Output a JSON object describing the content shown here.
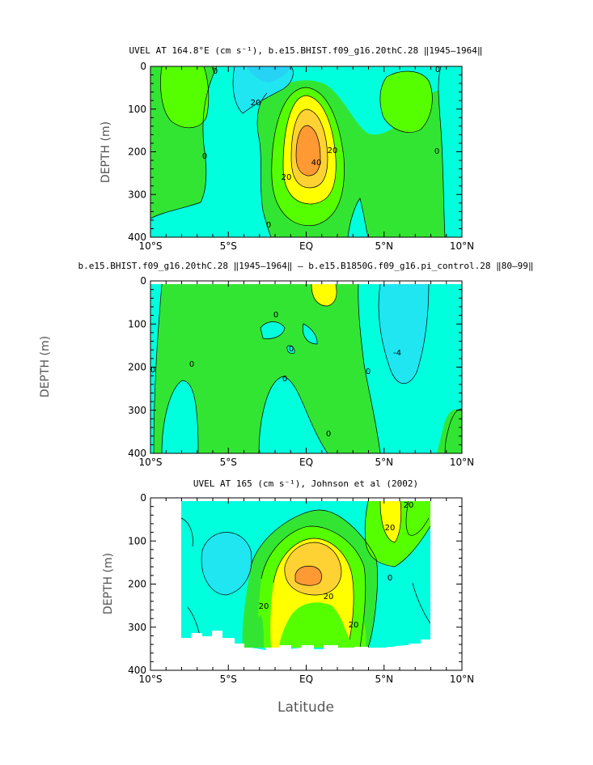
{
  "colors": {
    "c_cyan_light": "#00ffdd",
    "c_cyan": "#1fe6f0",
    "c_cyan_dark": "#26d3f5",
    "c_green_light": "#33e533",
    "c_green": "#55ff00",
    "c_yellow": "#ffff00",
    "c_gold": "#ffd233",
    "c_orange": "#ff9933",
    "missing": "#ffffff"
  },
  "xlabel": "Latitude",
  "chart_data": [
    {
      "type": "heatmap",
      "title": "UVEL AT 164.8°E (cm s⁻¹), b.e15.BHIST.f09_g16.20thC.28 ‖1945–1964‖",
      "ylabel": "DEPTH (m)",
      "xlim": [
        -10,
        10
      ],
      "ylim": [
        400,
        0
      ],
      "xticks": [
        "10°S",
        "5°S",
        "EQ",
        "5°N",
        "10°N"
      ],
      "yticks": [
        "0",
        "100",
        "200",
        "300",
        "400"
      ],
      "contour_labels": [
        "0",
        "20",
        "20",
        "40",
        "20",
        "0",
        "0",
        "0",
        "0"
      ],
      "features": [
        {
          "name": "core-maximum",
          "lat": 0,
          "depth": 190,
          "value": 60
        },
        {
          "name": "surface-westward-flow",
          "lat": -2,
          "depth": 0,
          "value": -20
        },
        {
          "name": "eastward-flow-south",
          "lat": -8,
          "depth": 100,
          "value": 10
        },
        {
          "name": "eastward-flow-north",
          "lat": 6,
          "depth": 100,
          "value": 10
        }
      ]
    },
    {
      "type": "heatmap",
      "title": "b.e15.BHIST.f09_g16.20thC.28 ‖1945–1964‖ – b.e15.B1850G.f09_g16.pi_control.28 ‖80–99‖",
      "ylabel": "DEPTH (m)",
      "xlim": [
        -10,
        10
      ],
      "ylim": [
        400,
        0
      ],
      "xticks": [
        "10°S",
        "5°S",
        "EQ",
        "5°N",
        "10°N"
      ],
      "yticks": [
        "0",
        "100",
        "200",
        "300",
        "400"
      ],
      "contour_labels": [
        "0",
        "0",
        "0",
        "0",
        "0",
        "0",
        "0",
        "-4"
      ],
      "features": [
        {
          "name": "positive-anomaly-near-surface",
          "lat": 0,
          "depth": 20,
          "value": 6
        },
        {
          "name": "negative-anomaly-north",
          "lat": 6,
          "depth": 140,
          "value": -6
        }
      ]
    },
    {
      "type": "heatmap",
      "title": "UVEL AT 165 (cm s⁻¹), Johnson et al (2002)",
      "ylabel": "DEPTH (m)",
      "xlim": [
        -10,
        10
      ],
      "ylim": [
        400,
        0
      ],
      "xticks": [
        "10°S",
        "5°S",
        "EQ",
        "5°N",
        "10°N"
      ],
      "yticks": [
        "0",
        "100",
        "200",
        "300",
        "400"
      ],
      "contour_labels": [
        "20",
        "20",
        "20",
        "20",
        "20",
        "0"
      ],
      "features": [
        {
          "name": "core-maximum",
          "lat": 0,
          "depth": 190,
          "value": 60
        },
        {
          "name": "northern-eastward-jet",
          "lat": 5,
          "depth": 50,
          "value": 30
        }
      ]
    }
  ]
}
